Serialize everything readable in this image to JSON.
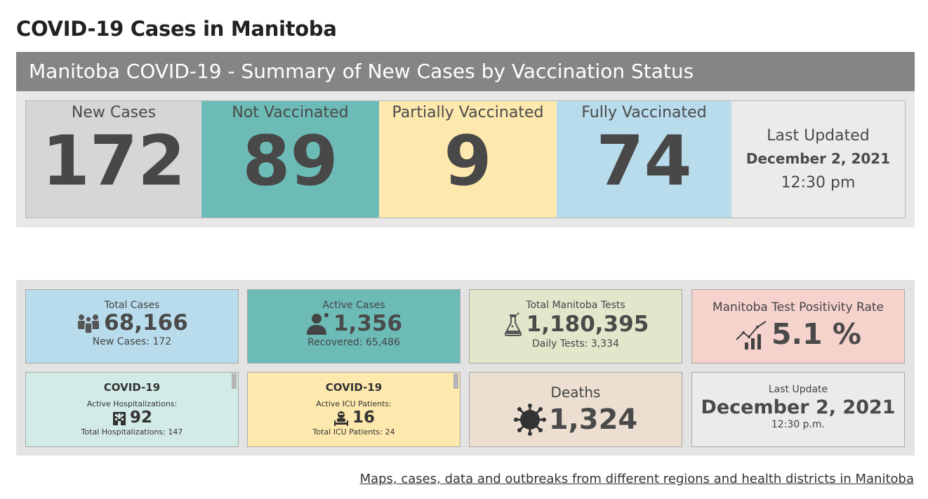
{
  "page_title": "COVID-19 Cases in Manitoba",
  "summary": {
    "header": "Manitoba COVID-19 - Summary of New Cases by Vaccination Status",
    "new_cases": {
      "label": "New Cases",
      "value": "172"
    },
    "not_vaccinated": {
      "label": "Not Vaccinated",
      "value": "89"
    },
    "partially_vaccinated": {
      "label": "Partially Vaccinated",
      "value": "9"
    },
    "fully_vaccinated": {
      "label": "Fully Vaccinated",
      "value": "74"
    },
    "last_updated": {
      "label": "Last Updated",
      "date": "December 2, 2021",
      "time": "12:30 pm"
    }
  },
  "dashboard": {
    "total_cases": {
      "label": "Total Cases",
      "value": "68,166",
      "sub": "New Cases: 172",
      "icon": "people-icon"
    },
    "active_cases": {
      "label": "Active Cases",
      "value": "1,356",
      "sub": "Recovered: 65,486",
      "icon": "person-icon"
    },
    "total_tests": {
      "label": "Total Manitoba Tests",
      "value": "1,180,395",
      "sub": "Daily Tests: 3,334",
      "icon": "flask-icon"
    },
    "positivity": {
      "label": "Manitoba Test Positivity Rate",
      "value": "5.1 %",
      "icon": "trend-chart-icon"
    },
    "hospitalizations": {
      "title": "COVID-19",
      "label": "Active Hospitalizations:",
      "value": "92",
      "sub": "Total Hospitalizations: 147",
      "icon": "hospital-icon"
    },
    "icu": {
      "title": "COVID-19",
      "label": "Active ICU Patients:",
      "value": "16",
      "sub": "Total ICU Patients: 24",
      "icon": "icu-patient-icon"
    },
    "deaths": {
      "label": "Deaths",
      "value": "1,324",
      "icon": "virus-icon"
    },
    "last_update": {
      "label": "Last Update",
      "date": "December 2, 2021",
      "time": "12:30 p.m."
    }
  },
  "footer": {
    "link_text": "Maps, cases, data and outbreaks from different regions and health districts in Manitoba"
  },
  "colors": {
    "header_gray": "#858585",
    "new_cases_bg": "#d6d6d6",
    "not_vaccinated_bg": "#6dbbb7",
    "partially_vaccinated_bg": "#fde8ad",
    "fully_vaccinated_bg": "#b8dcec",
    "positivity_bg": "#f6d2cd"
  }
}
